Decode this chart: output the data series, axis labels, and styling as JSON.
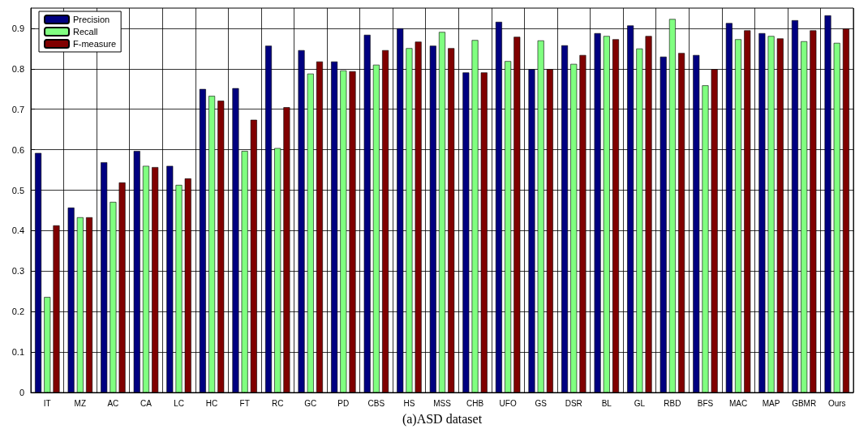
{
  "chart_data": {
    "type": "bar",
    "xlabel": "(a)ASD dataset",
    "categories": [
      "IT",
      "MZ",
      "AC",
      "CA",
      "LC",
      "HC",
      "FT",
      "RC",
      "GC",
      "PD",
      "CBS",
      "HS",
      "MSS",
      "CHB",
      "UFO",
      "GS",
      "DSR",
      "BL",
      "GL",
      "RBD",
      "BFS",
      "MAC",
      "MAP",
      "GBMR",
      "Ours"
    ],
    "series": [
      {
        "name": "Precision",
        "color": "#000080",
        "values": [
          0.592,
          0.457,
          0.569,
          0.597,
          0.56,
          0.75,
          0.752,
          0.857,
          0.846,
          0.818,
          0.884,
          0.9,
          0.857,
          0.791,
          0.916,
          0.799,
          0.858,
          0.888,
          0.907,
          0.83,
          0.834,
          0.913,
          0.888,
          0.92,
          0.932
        ]
      },
      {
        "name": "Recall",
        "color": "#80ff80",
        "values": [
          0.236,
          0.433,
          0.471,
          0.56,
          0.513,
          0.733,
          0.597,
          0.604,
          0.788,
          0.796,
          0.81,
          0.851,
          0.891,
          0.871,
          0.819,
          0.87,
          0.812,
          0.881,
          0.85,
          0.923,
          0.759,
          0.873,
          0.881,
          0.868,
          0.864
        ]
      },
      {
        "name": "F-measure",
        "color": "#800000",
        "values": [
          0.413,
          0.433,
          0.519,
          0.557,
          0.529,
          0.721,
          0.674,
          0.705,
          0.818,
          0.794,
          0.846,
          0.867,
          0.851,
          0.791,
          0.879,
          0.799,
          0.834,
          0.873,
          0.881,
          0.839,
          0.799,
          0.895,
          0.875,
          0.895,
          0.899
        ]
      }
    ],
    "ylim": [
      0,
      0.95
    ],
    "yticks": [
      0,
      0.1,
      0.2,
      0.3,
      0.4,
      0.5,
      0.6,
      0.7,
      0.8,
      0.9
    ],
    "grid": true,
    "legend": "top left"
  }
}
